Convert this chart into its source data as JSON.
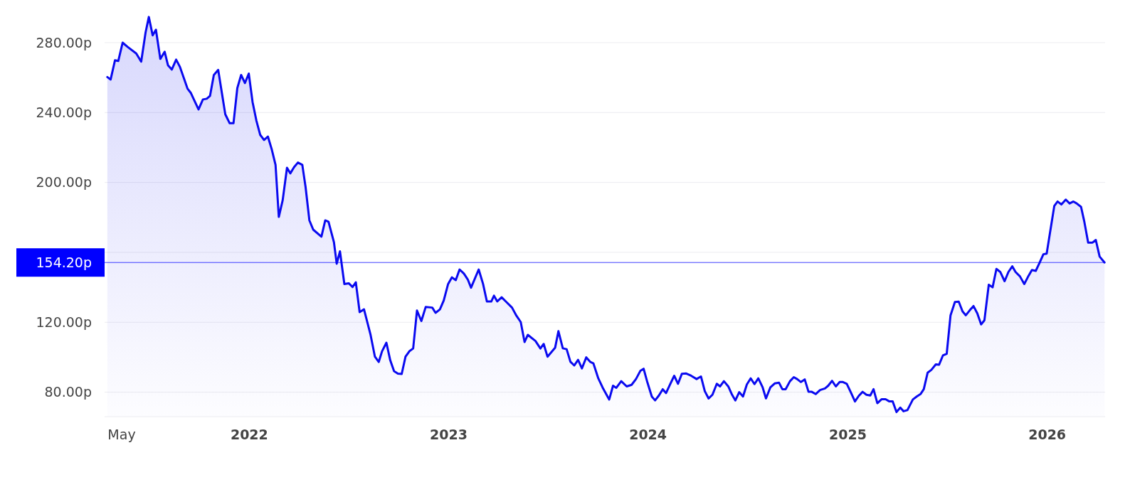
{
  "chart_data": {
    "type": "area",
    "xlim": [
      "2021-04-11",
      "2026-04-17"
    ],
    "ylim": [
      66,
      304
    ],
    "xticks": [
      {
        "value": "2021-05-01",
        "label": "May"
      },
      {
        "value": "2022-01-01",
        "label": "2022"
      },
      {
        "value": "2023-01-01",
        "label": "2023"
      },
      {
        "value": "2024-01-01",
        "label": "2024"
      },
      {
        "value": "2025-01-01",
        "label": "2025"
      },
      {
        "value": "2026-01-01",
        "label": "2026"
      }
    ],
    "yticks": [
      {
        "value": 80,
        "label": "80.00p"
      },
      {
        "value": 120,
        "label": "120.00p"
      },
      {
        "value": 160,
        "label": null
      },
      {
        "value": 200,
        "label": "200.00p"
      },
      {
        "value": 240,
        "label": "240.00p"
      },
      {
        "value": 280,
        "label": "280.00p"
      }
    ],
    "grid": "y",
    "ref_lines": [
      {
        "axis": "y",
        "value": 154.2,
        "label": "154.20p",
        "color": "#0000ff"
      }
    ],
    "series": [
      {
        "color": "#0a0af0",
        "x": [
          "2021-04-16",
          "2021-04-22",
          "2021-04-30",
          "2021-05-06",
          "2021-05-14",
          "2021-05-23",
          "2021-06-08",
          "2021-06-17",
          "2021-06-25",
          "2021-07-01",
          "2021-07-08",
          "2021-07-14",
          "2021-07-22",
          "2021-07-30",
          "2021-08-05",
          "2021-08-12",
          "2021-08-20",
          "2021-08-27",
          "2021-09-10",
          "2021-09-16",
          "2021-09-30",
          "2021-10-08",
          "2021-10-15",
          "2021-10-21",
          "2021-10-28",
          "2021-11-05",
          "2021-11-18",
          "2021-11-26",
          "2021-12-03",
          "2021-12-10",
          "2021-12-17",
          "2021-12-24",
          "2021-12-31",
          "2022-01-07",
          "2022-01-14",
          "2022-01-21",
          "2022-01-28",
          "2022-02-04",
          "2022-02-11",
          "2022-02-18",
          "2022-02-24",
          "2022-03-03",
          "2022-03-11",
          "2022-03-17",
          "2022-03-24",
          "2022-03-31",
          "2022-04-08",
          "2022-04-14",
          "2022-04-21",
          "2022-04-28",
          "2022-05-13",
          "2022-05-20",
          "2022-05-26",
          "2022-06-05",
          "2022-06-10",
          "2022-06-16",
          "2022-06-24",
          "2022-07-02",
          "2022-07-09",
          "2022-07-15",
          "2022-07-22",
          "2022-07-30",
          "2022-08-11",
          "2022-08-19",
          "2022-08-26",
          "2022-09-01",
          "2022-09-09",
          "2022-09-16",
          "2022-09-23",
          "2022-09-30",
          "2022-10-07",
          "2022-10-14",
          "2022-10-21",
          "2022-10-28",
          "2022-11-04",
          "2022-11-12",
          "2022-11-20",
          "2022-12-02",
          "2022-12-08",
          "2022-12-16",
          "2022-12-23",
          "2022-12-31",
          "2023-01-07",
          "2023-01-14",
          "2023-01-21",
          "2023-01-29",
          "2023-02-05",
          "2023-02-11",
          "2023-02-25",
          "2023-03-05",
          "2023-03-12",
          "2023-03-20",
          "2023-03-25",
          "2023-03-31",
          "2023-04-08",
          "2023-04-17",
          "2023-04-27",
          "2023-05-05",
          "2023-05-13",
          "2023-05-20",
          "2023-05-26",
          "2023-06-09",
          "2023-06-18",
          "2023-06-24",
          "2023-07-01",
          "2023-07-15",
          "2023-07-21",
          "2023-07-29",
          "2023-08-05",
          "2023-08-12",
          "2023-08-19",
          "2023-08-26",
          "2023-09-02",
          "2023-09-10",
          "2023-09-17",
          "2023-09-23",
          "2023-10-02",
          "2023-10-10",
          "2023-10-22",
          "2023-10-29",
          "2023-11-04",
          "2023-11-13",
          "2023-11-23",
          "2023-12-02",
          "2023-12-10",
          "2023-12-18",
          "2023-12-24",
          "2023-12-31",
          "2024-01-08",
          "2024-01-14",
          "2024-01-21",
          "2024-01-28",
          "2024-02-03",
          "2024-02-10",
          "2024-02-18",
          "2024-02-25",
          "2024-03-03",
          "2024-03-11",
          "2024-03-20",
          "2024-03-30",
          "2024-04-07",
          "2024-04-14",
          "2024-04-21",
          "2024-04-28",
          "2024-05-06",
          "2024-05-12",
          "2024-05-19",
          "2024-05-27",
          "2024-06-03",
          "2024-06-09",
          "2024-06-16",
          "2024-06-23",
          "2024-06-30",
          "2024-07-07",
          "2024-07-14",
          "2024-07-21",
          "2024-07-29",
          "2024-08-04",
          "2024-08-12",
          "2024-08-20",
          "2024-08-28",
          "2024-09-03",
          "2024-09-09",
          "2024-09-17",
          "2024-09-24",
          "2024-09-30",
          "2024-10-07",
          "2024-10-14",
          "2024-10-21",
          "2024-10-27",
          "2024-11-03",
          "2024-11-11",
          "2024-11-20",
          "2024-11-26",
          "2024-12-03",
          "2024-12-10",
          "2024-12-17",
          "2024-12-23",
          "2024-12-30",
          "2025-01-06",
          "2025-01-14",
          "2025-01-21",
          "2025-01-28",
          "2025-02-04",
          "2025-02-11",
          "2025-02-17",
          "2025-02-24",
          "2025-03-04",
          "2025-03-11",
          "2025-03-18",
          "2025-03-24",
          "2025-03-31",
          "2025-04-07",
          "2025-04-13",
          "2025-04-20",
          "2025-04-30",
          "2025-05-07",
          "2025-05-14",
          "2025-05-20",
          "2025-05-27",
          "2025-06-03",
          "2025-06-11",
          "2025-06-17",
          "2025-06-24",
          "2025-07-01",
          "2025-07-08",
          "2025-07-16",
          "2025-07-23",
          "2025-07-30",
          "2025-08-05",
          "2025-08-12",
          "2025-08-19",
          "2025-08-26",
          "2025-09-02",
          "2025-09-08",
          "2025-09-16",
          "2025-09-23",
          "2025-09-30",
          "2025-10-07",
          "2025-10-15",
          "2025-10-22",
          "2025-10-29",
          "2025-11-04",
          "2025-11-12",
          "2025-11-20",
          "2025-11-28",
          "2025-12-04",
          "2025-12-11",
          "2025-12-18",
          "2025-12-25",
          "2025-12-31",
          "2026-01-14",
          "2026-01-20",
          "2026-01-27",
          "2026-02-04",
          "2026-02-11",
          "2026-02-18",
          "2026-02-24",
          "2026-03-04",
          "2026-03-10",
          "2026-03-17",
          "2026-03-25",
          "2026-03-31",
          "2026-04-07",
          "2026-04-16"
        ],
        "values": [
          260.3,
          258.9,
          269.9,
          269.5,
          280,
          277.6,
          273.8,
          269.1,
          285.8,
          294.7,
          284.2,
          287.4,
          270.7,
          274.8,
          267.1,
          264.6,
          270.3,
          266.1,
          253.6,
          251.2,
          241.8,
          247.5,
          247.9,
          249.5,
          261.5,
          264.4,
          239,
          233.9,
          233.9,
          254,
          261.5,
          256.9,
          262.3,
          245.9,
          235.3,
          227.2,
          224.3,
          226.3,
          219,
          210.1,
          180.3,
          189.7,
          208.4,
          205.2,
          208.8,
          211.4,
          210.1,
          197.4,
          178.3,
          173,
          169,
          178.3,
          177.5,
          165.7,
          153.5,
          160.6,
          141.9,
          142.3,
          140.2,
          142.9,
          125.8,
          127.4,
          112.8,
          100.3,
          97.3,
          103.4,
          108.3,
          98.3,
          92,
          90.6,
          90.4,
          100.3,
          103.4,
          105,
          126.7,
          120.7,
          128.8,
          128.4,
          125.4,
          127.4,
          132.5,
          141.9,
          145.7,
          144.1,
          150.2,
          147.8,
          144.5,
          139.8,
          150.2,
          141.9,
          131.9,
          131.9,
          135.2,
          131.9,
          134.3,
          131.5,
          128.4,
          123.8,
          120.1,
          108.7,
          112.8,
          109.3,
          105,
          107.6,
          100.3,
          105.5,
          114.9,
          105.1,
          104.6,
          97.4,
          95.3,
          98.5,
          93.6,
          99.9,
          97.4,
          96.5,
          87.9,
          82.6,
          75.8,
          83.7,
          82.5,
          86.3,
          83.3,
          84.2,
          87.5,
          92.2,
          93.4,
          85.5,
          77.5,
          75.3,
          78.1,
          81.7,
          79.5,
          84.2,
          89.4,
          84.8,
          90.5,
          90.7,
          89.4,
          87.5,
          89,
          80.6,
          76.4,
          78.5,
          84.8,
          83.3,
          86.3,
          83.3,
          78.5,
          75.3,
          80,
          77.5,
          84.4,
          87.9,
          84.6,
          87.9,
          82.7,
          76.4,
          82.7,
          85,
          85.4,
          81.7,
          81.7,
          86.3,
          88.6,
          87.5,
          85.8,
          87.3,
          80.2,
          80.2,
          78.9,
          81.2,
          82.1,
          83.7,
          86.5,
          83.3,
          85.8,
          85.8,
          84.8,
          80.2,
          74.7,
          77.9,
          80.2,
          78.5,
          78.1,
          81.7,
          73.7,
          76,
          76,
          74.7,
          74.7,
          68.6,
          71.2,
          69.1,
          69.7,
          75.8,
          77.5,
          78.9,
          81.7,
          91.1,
          92.8,
          95.9,
          95.7,
          101,
          102,
          124,
          131.6,
          131.8,
          126.2,
          124,
          126.8,
          129.3,
          125.1,
          118.8,
          121.1,
          141.5,
          140,
          150.5,
          148.8,
          143.5,
          148.8,
          152,
          148.8,
          146.3,
          141.9,
          146.7,
          149.9,
          149.4,
          154,
          158.9,
          159.3,
          186.6,
          189.1,
          187.4,
          190.2,
          188,
          189.1,
          188,
          186,
          177.5,
          165.6,
          165.6,
          167.1,
          157.6,
          154.2
        ]
      }
    ]
  }
}
